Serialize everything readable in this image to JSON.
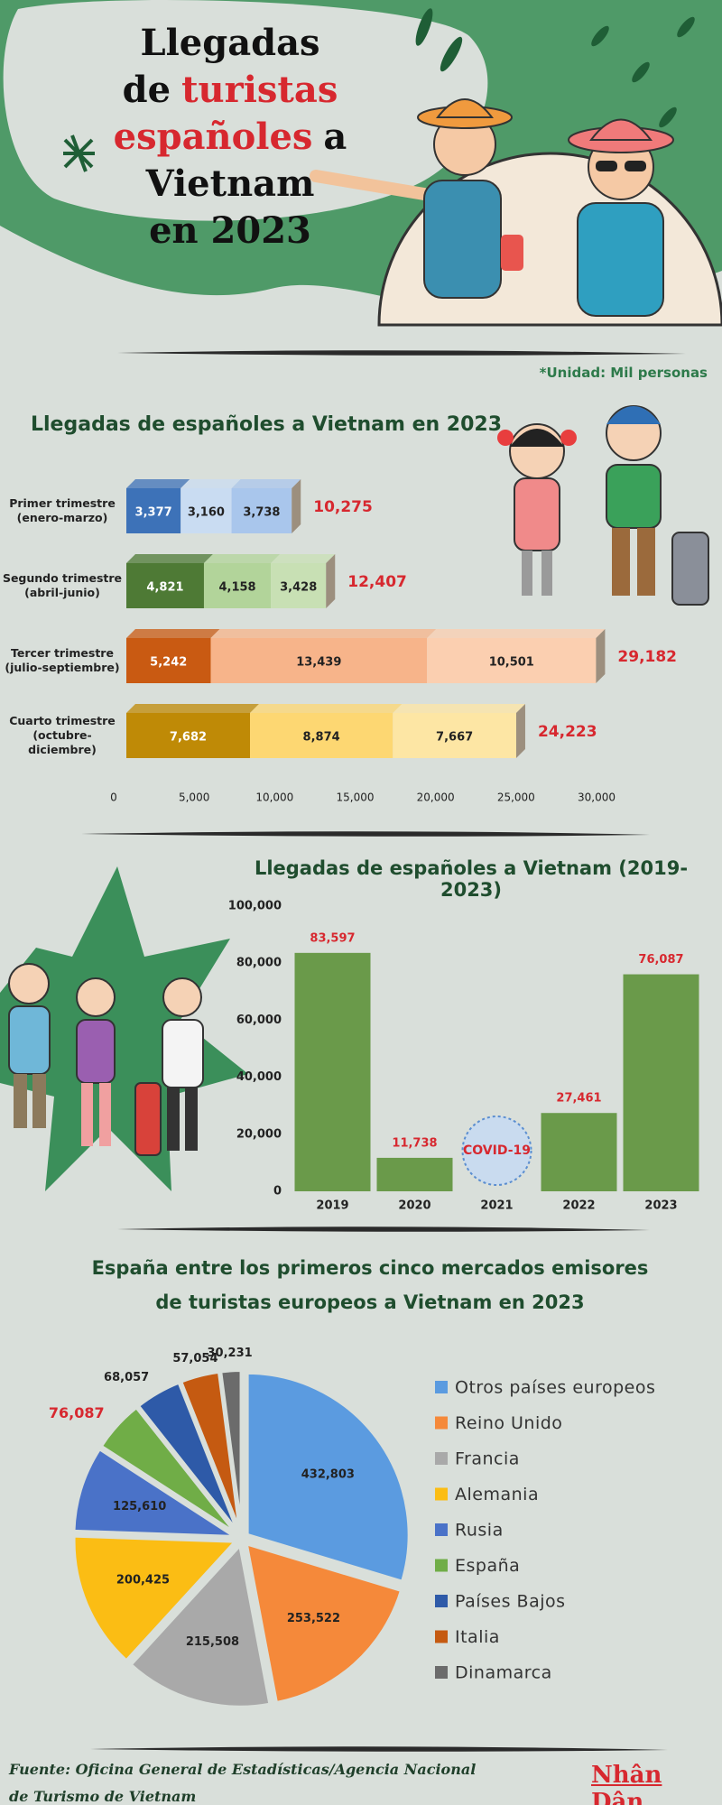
{
  "title": {
    "parts": [
      "Llegadas de",
      "turistas",
      "españoles",
      "a Vietnam",
      "en 2023"
    ]
  },
  "unit_note": "*Unidad: Mil personas",
  "chart_data": [
    {
      "type": "bar",
      "orientation": "horizontal",
      "stacked": true,
      "title": "Llegadas de españoles a Vietnam en 2023",
      "categories": [
        "Primer trimestre (enero-marzo)",
        "Segundo trimestre (abril-junio)",
        "Tercer trimestre (julio-septiembre)",
        "Cuarto trimestre (octubre-diciembre)"
      ],
      "series": [
        {
          "values": [
            3377,
            4821,
            5242,
            7682
          ],
          "value_labels": [
            "3,377",
            "4,821",
            "5,242",
            "7,682"
          ],
          "colors": [
            "#3d72b8",
            "#4e7a35",
            "#c95a12",
            "#bf8a06"
          ]
        },
        {
          "values": [
            3160,
            4158,
            13439,
            8874
          ],
          "value_labels": [
            "3,160",
            "4,158",
            "13,439",
            "8,874"
          ],
          "colors": [
            "#c9dcf2",
            "#b2d49a",
            "#f7b48a",
            "#fdd772"
          ]
        },
        {
          "values": [
            3738,
            3428,
            10501,
            7667
          ],
          "value_labels": [
            "3,738",
            "3,428",
            "10,501",
            "7,667"
          ],
          "colors": [
            "#a9c6ec",
            "#c8e0b4",
            "#fbcfb0",
            "#fde6a4"
          ]
        }
      ],
      "totals": [
        10275,
        12407,
        29182,
        24223
      ],
      "totals_labels": [
        "10,275",
        "12,407",
        "29,182",
        "24,223"
      ],
      "total_color": "#d7282f",
      "xlim": [
        0,
        30000
      ],
      "xticks": [
        0,
        {
          "value": 5000,
          "label": "5,000"
        },
        {
          "value": 10000,
          "label": "10,000"
        },
        {
          "value": 15000,
          "label": "15,000"
        },
        {
          "value": 20000,
          "label": "20,000"
        },
        {
          "value": 25000,
          "label": "25,000"
        },
        {
          "value": 30000,
          "label": "30,000"
        }
      ],
      "grid": false
    },
    {
      "type": "bar",
      "orientation": "vertical",
      "title": "Llegadas de españoles a Vietnam (2019-2023)",
      "categories": [
        "2019",
        "2020",
        "2021",
        "2022",
        "2023"
      ],
      "values": [
        83597,
        11738,
        null,
        27461,
        76087
      ],
      "value_labels": [
        "83,597",
        "11,738",
        null,
        "27,461",
        "76,087"
      ],
      "color": "#6a9a4a",
      "label_color": "#d7282f",
      "annotation": "COVID-19",
      "ylim": [
        0,
        100000
      ],
      "yticks": [
        0,
        {
          "value": 20000,
          "label": "20,000"
        },
        {
          "value": 40000,
          "label": "40,000"
        },
        {
          "value": 60000,
          "label": "60,000"
        },
        {
          "value": 80000,
          "label": "80,000"
        },
        {
          "value": 100000,
          "label": "100,000"
        }
      ],
      "grid": false
    },
    {
      "type": "pie",
      "title": "España entre los primeros cinco mercados emisores de turistas europeos a Vietnam en 2023",
      "categories": [
        "Otros países europeos",
        "Reino Unido",
        "Francia",
        "Alemania",
        "Rusia",
        "España",
        "Países Bajos",
        "Italia",
        "Dinamarca"
      ],
      "values": [
        432803,
        253522,
        215508,
        200425,
        125610,
        76087,
        68057,
        57054,
        30231
      ],
      "value_labels": [
        "432,803",
        "253,522",
        "215,508",
        "200,425",
        "125,610",
        "76,087",
        "68,057",
        "57,054",
        "30,231"
      ],
      "colors": [
        "#5b9be0",
        "#f5893a",
        "#a9a9a9",
        "#fbbd14",
        "#4a72c8",
        "#70ad47",
        "#2e5aa8",
        "#c55a11",
        "#6b6b6b"
      ],
      "label_colors": [
        "#222222",
        "#222222",
        "#222222",
        "#222222",
        "#222222",
        "#d7282f",
        "#222222",
        "#222222",
        "#222222"
      ],
      "legend": "right"
    }
  ],
  "source": "Fuente: Oficina General de Estadísticas/Agencia Nacional de Turismo de Vietnam",
  "logo": "Nhân Dân"
}
